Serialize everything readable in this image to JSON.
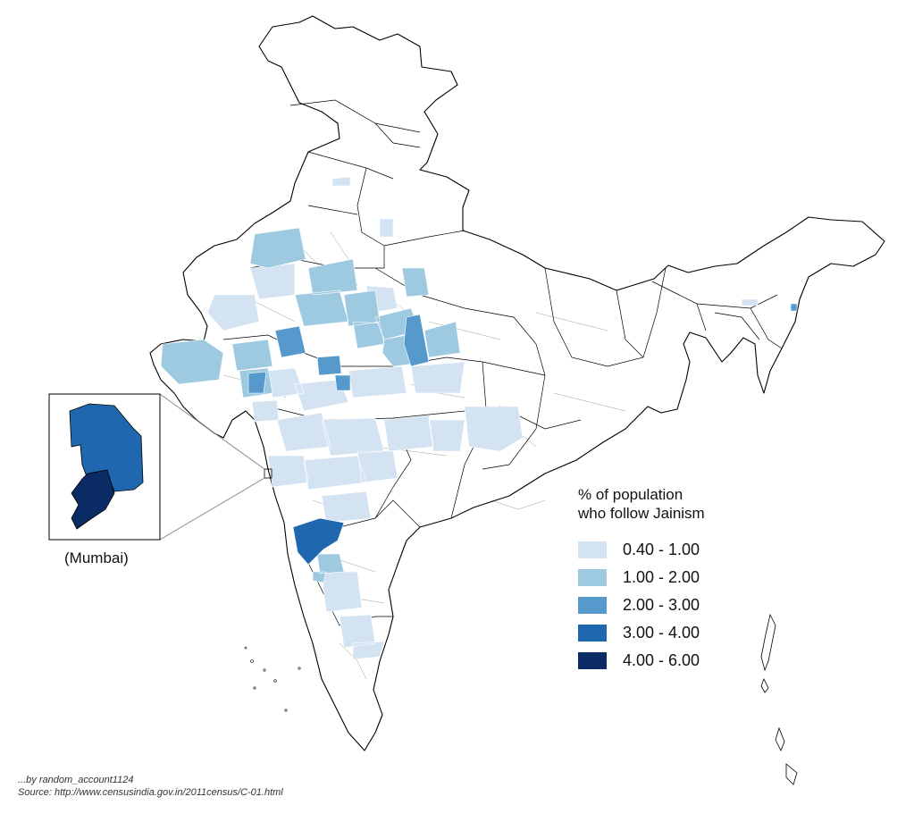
{
  "map": {
    "legend": {
      "title_line1": "% of population",
      "title_line2": "who follow Jainism",
      "classes": [
        {
          "label": "0.40 - 1.00",
          "color": "#d4e3f2"
        },
        {
          "label": "1.00 - 2.00",
          "color": "#9ecae1"
        },
        {
          "label": "2.00 - 3.00",
          "color": "#5699cc"
        },
        {
          "label": "3.00 - 4.00",
          "color": "#1f68b0"
        },
        {
          "label": "4.00 - 6.00",
          "color": "#0a2b63"
        }
      ]
    },
    "inset": {
      "caption": "(Mumbai)",
      "districts": [
        {
          "class": "3.00 - 4.00",
          "color": "#1f68b0"
        },
        {
          "class": "4.00 - 6.00",
          "color": "#0a2b63"
        }
      ]
    },
    "colors": {
      "boundary": "#000000",
      "background": "#ffffff",
      "callout_line": "#888888"
    }
  },
  "credits": {
    "line1": "...by random_account1124",
    "line2": "Source:  http://www.censusindia.gov.in/2011census/C-01.html"
  }
}
